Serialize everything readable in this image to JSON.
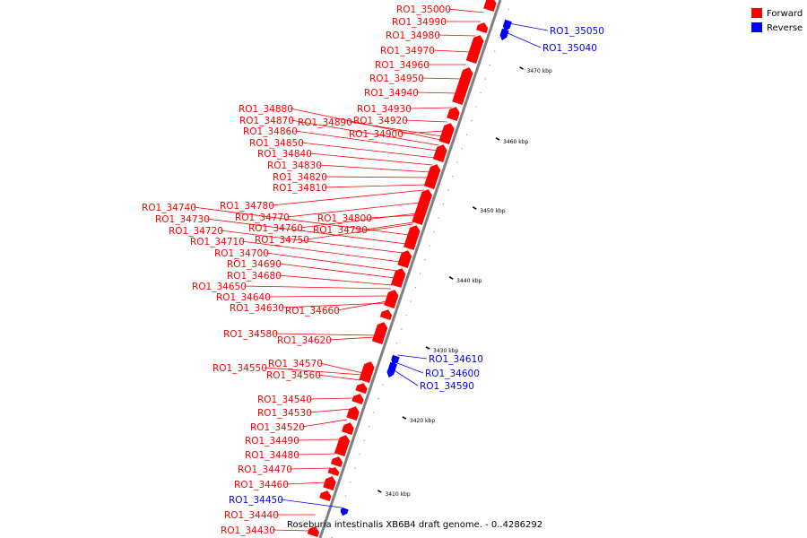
{
  "legend": {
    "items": [
      {
        "label": "Forward",
        "color": "#ff0000"
      },
      {
        "label": "Reverse",
        "color": "#0000ff"
      }
    ]
  },
  "caption": "Roseburia intestinalis XB6B4 draft genome. - 0..4286292",
  "colors": {
    "forward": "#ff0000",
    "reverse": "#0000ff",
    "backbone": "#808080",
    "tick": "#000000"
  },
  "ticks": [
    "3410 kbp",
    "3420 kbp",
    "3430 kbp",
    "3440 kbp",
    "3450 kbp",
    "3460 kbp",
    "3470 kbp"
  ],
  "genes": [
    {
      "label": "RO1_35000",
      "strand": "forward"
    },
    {
      "label": "RO1_34990",
      "strand": "forward"
    },
    {
      "label": "RO1_34980",
      "strand": "forward"
    },
    {
      "label": "RO1_34970",
      "strand": "forward"
    },
    {
      "label": "RO1_34960",
      "strand": "forward"
    },
    {
      "label": "RO1_34950",
      "strand": "forward"
    },
    {
      "label": "RO1_34940",
      "strand": "forward"
    },
    {
      "label": "RO1_34930",
      "strand": "forward"
    },
    {
      "label": "RO1_34920",
      "strand": "forward"
    },
    {
      "label": "RO1_34900",
      "strand": "forward"
    },
    {
      "label": "RO1_34890",
      "strand": "forward"
    },
    {
      "label": "RO1_34880",
      "strand": "forward"
    },
    {
      "label": "RO1_34870",
      "strand": "forward"
    },
    {
      "label": "RO1_34860",
      "strand": "forward"
    },
    {
      "label": "RO1_34850",
      "strand": "forward"
    },
    {
      "label": "RO1_34840",
      "strand": "forward"
    },
    {
      "label": "RO1_34830",
      "strand": "forward"
    },
    {
      "label": "RO1_34820",
      "strand": "forward"
    },
    {
      "label": "RO1_34810",
      "strand": "forward"
    },
    {
      "label": "RO1_34800",
      "strand": "forward"
    },
    {
      "label": "RO1_34790",
      "strand": "forward"
    },
    {
      "label": "RO1_34780",
      "strand": "forward"
    },
    {
      "label": "RO1_34770",
      "strand": "forward"
    },
    {
      "label": "RO1_34760",
      "strand": "forward"
    },
    {
      "label": "RO1_34750",
      "strand": "forward"
    },
    {
      "label": "RO1_34740",
      "strand": "forward"
    },
    {
      "label": "RO1_34730",
      "strand": "forward"
    },
    {
      "label": "RO1_34720",
      "strand": "forward"
    },
    {
      "label": "RO1_34710",
      "strand": "forward"
    },
    {
      "label": "RO1_34700",
      "strand": "forward"
    },
    {
      "label": "RO1_34690",
      "strand": "forward"
    },
    {
      "label": "RO1_34680",
      "strand": "forward"
    },
    {
      "label": "RO1_34660",
      "strand": "forward"
    },
    {
      "label": "RO1_34650",
      "strand": "forward"
    },
    {
      "label": "RO1_34640",
      "strand": "forward"
    },
    {
      "label": "RO1_34630",
      "strand": "forward"
    },
    {
      "label": "RO1_34620",
      "strand": "forward"
    },
    {
      "label": "RO1_34580",
      "strand": "forward"
    },
    {
      "label": "RO1_34570",
      "strand": "forward"
    },
    {
      "label": "RO1_34560",
      "strand": "forward"
    },
    {
      "label": "RO1_34550",
      "strand": "forward"
    },
    {
      "label": "RO1_34540",
      "strand": "forward"
    },
    {
      "label": "RO1_34530",
      "strand": "forward"
    },
    {
      "label": "RO1_34520",
      "strand": "forward"
    },
    {
      "label": "RO1_34490",
      "strand": "forward"
    },
    {
      "label": "RO1_34480",
      "strand": "forward"
    },
    {
      "label": "RO1_34470",
      "strand": "forward"
    },
    {
      "label": "RO1_34460",
      "strand": "forward"
    },
    {
      "label": "RO1_34440",
      "strand": "forward"
    },
    {
      "label": "RO1_34430",
      "strand": "forward"
    },
    {
      "label": "RO1_35050",
      "strand": "reverse"
    },
    {
      "label": "RO1_35040",
      "strand": "reverse"
    },
    {
      "label": "RO1_34610",
      "strand": "reverse"
    },
    {
      "label": "RO1_34600",
      "strand": "reverse"
    },
    {
      "label": "RO1_34590",
      "strand": "reverse"
    },
    {
      "label": "RO1_34450",
      "strand": "reverse"
    }
  ]
}
